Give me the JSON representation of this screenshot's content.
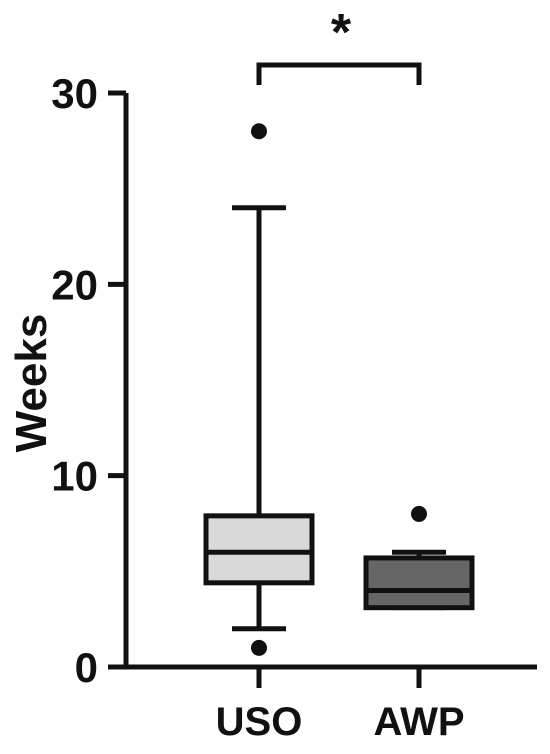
{
  "chart_data": {
    "type": "box",
    "title": "",
    "xlabel": "",
    "ylabel": "Weeks",
    "ylim": [
      0,
      30
    ],
    "yticks": [
      0,
      10,
      20,
      30
    ],
    "categories": [
      "USO",
      "AWP"
    ],
    "groups": [
      {
        "name": "USO",
        "whisker_low": 2,
        "q1": 4.4,
        "median": 6,
        "q3": 7.9,
        "whisker_high": 24,
        "outliers": [
          1,
          28
        ],
        "fill": "#d9d9d9"
      },
      {
        "name": "AWP",
        "whisker_low": 3.1,
        "q1": 3.1,
        "median": 4,
        "q3": 5.7,
        "whisker_high": 6,
        "outliers": [
          8
        ],
        "fill": "#666666"
      }
    ],
    "significance": {
      "from": "USO",
      "to": "AWP",
      "label": "*"
    },
    "grid": false,
    "legend": "none"
  }
}
